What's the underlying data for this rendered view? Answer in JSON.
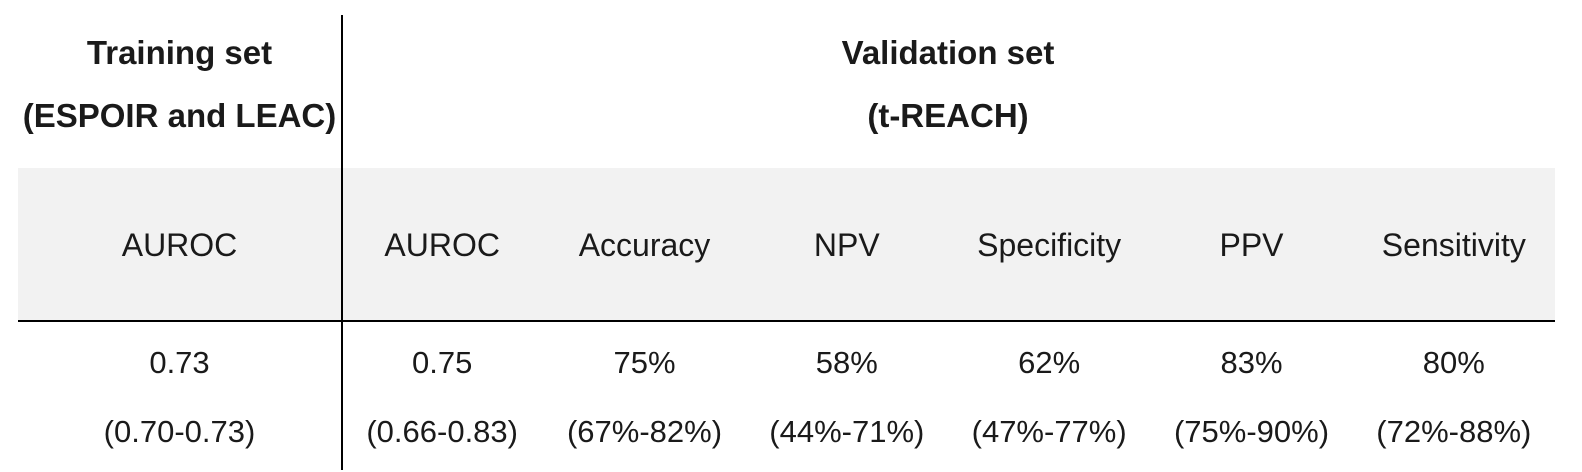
{
  "table": {
    "groups": [
      {
        "line1": "Training set",
        "line2": "(ESPOIR and LEAC)"
      },
      {
        "line1": "Validation set",
        "line2": "(t-REACH)"
      }
    ],
    "columns": [
      {
        "group": "training",
        "header": "AUROC",
        "value": "0.73",
        "ci": "(0.70-0.73)"
      },
      {
        "group": "validation",
        "header": "AUROC",
        "value": "0.75",
        "ci": "(0.66-0.83)"
      },
      {
        "group": "validation",
        "header": "Accuracy",
        "value": "75%",
        "ci": "(67%-82%)"
      },
      {
        "group": "validation",
        "header": "NPV",
        "value": "58%",
        "ci": "(44%-71%)"
      },
      {
        "group": "validation",
        "header": "Specificity",
        "value": "62%",
        "ci": "(47%-77%)"
      },
      {
        "group": "validation",
        "header": "PPV",
        "value": "83%",
        "ci": "(75%-90%)"
      },
      {
        "group": "validation",
        "header": "Sensitivity",
        "value": "80%",
        "ci": "(72%-88%)"
      }
    ],
    "colors": {
      "header_band_bg": "#f2f2f2",
      "text": "#1a1a1a",
      "line": "#000000",
      "background": "#ffffff"
    }
  },
  "chart_data": {
    "type": "table",
    "column_groups": [
      {
        "label": "Training set (ESPOIR and LEAC)",
        "columns": [
          "AUROC"
        ]
      },
      {
        "label": "Validation set (t-REACH)",
        "columns": [
          "AUROC",
          "Accuracy",
          "NPV",
          "Specificity",
          "PPV",
          "Sensitivity"
        ]
      }
    ],
    "columns": [
      "AUROC",
      "AUROC",
      "Accuracy",
      "NPV",
      "Specificity",
      "PPV",
      "Sensitivity"
    ],
    "rows": [
      {
        "name": "point_estimate",
        "values": [
          "0.73",
          "0.75",
          "75%",
          "58%",
          "62%",
          "83%",
          "80%"
        ]
      },
      {
        "name": "confidence_interval",
        "values": [
          "(0.70-0.73)",
          "(0.66-0.83)",
          "(67%-82%)",
          "(44%-71%)",
          "(47%-77%)",
          "(75%-90%)",
          "(72%-88%)"
        ]
      }
    ]
  }
}
